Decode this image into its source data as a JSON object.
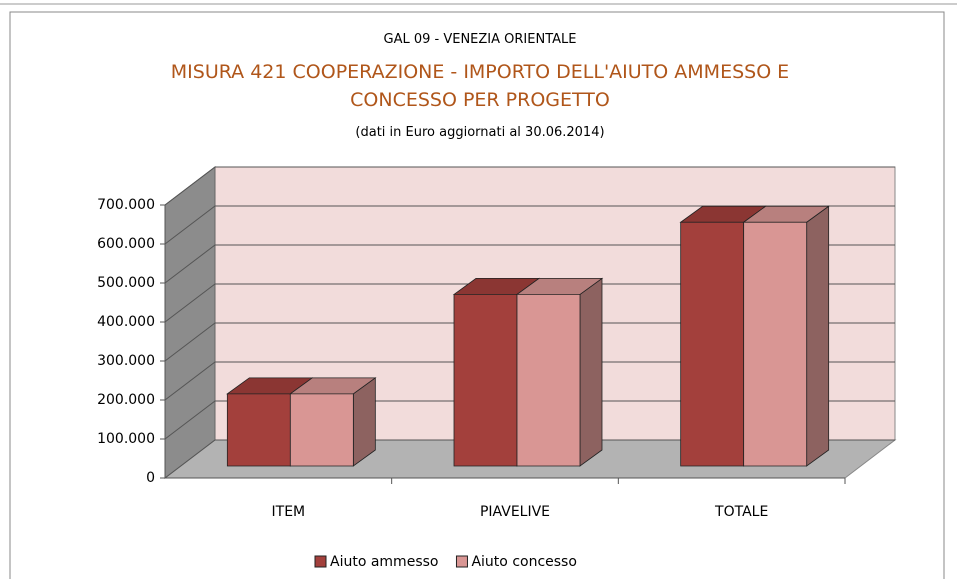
{
  "chart_data": {
    "type": "bar3d",
    "supertitle": "GAL 09 - VENEZIA ORIENTALE",
    "title": "MISURA 421 COOPERAZIONE - IMPORTO DELL'AIUTO AMMESSO E CONCESSO PER PROGETTO",
    "subtitle": "(dati in Euro aggiornati al 30.06.2014)",
    "categories": [
      "ITEM",
      "PIAVELIVE",
      "TOTALE"
    ],
    "series": [
      {
        "name": "Aiuto ammesso",
        "color": "#a3403c",
        "values": [
          185000,
          440000,
          625000
        ]
      },
      {
        "name": "Aiuto concesso",
        "color": "#d99694",
        "values": [
          185000,
          440000,
          625000
        ]
      }
    ],
    "ylim": [
      0,
      700000
    ],
    "yticks": [
      0,
      {
        "value": 100000,
        "label": "100.000"
      },
      {
        "value": 200000,
        "label": "200.000"
      },
      {
        "value": 300000,
        "label": "300.000"
      },
      {
        "value": 400000,
        "label": "400.000"
      },
      {
        "value": 500000,
        "label": "500.000"
      },
      {
        "value": 600000,
        "label": "600.000"
      },
      {
        "value": 700000,
        "label": "700.000"
      }
    ],
    "grid": true,
    "legend": "bottom"
  }
}
